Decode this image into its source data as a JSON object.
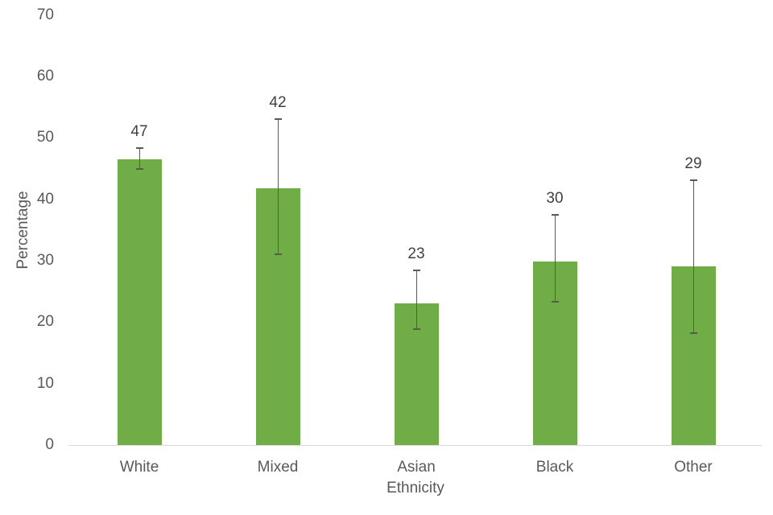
{
  "chart_data": {
    "type": "bar",
    "title": "",
    "xlabel": "Ethnicity",
    "ylabel": "Percentage",
    "categories": [
      "White",
      "Mixed",
      "Asian",
      "Black",
      "Other"
    ],
    "values": [
      47,
      42,
      23,
      30,
      29
    ],
    "bar_tops": [
      46.5,
      41.8,
      23.1,
      29.9,
      29.1
    ],
    "error_low": [
      44.9,
      31.1,
      18.8,
      23.3,
      18.2
    ],
    "error_high": [
      48.3,
      53.0,
      28.4,
      37.4,
      43.1
    ],
    "ylim": [
      0,
      70
    ],
    "ytick_step": 10,
    "ytick_labels": [
      "0",
      "10",
      "20",
      "30",
      "40",
      "50",
      "60",
      "70"
    ],
    "grid": false,
    "legend": false,
    "data_labels_shown": true,
    "colors": {
      "bar": "#70AD47",
      "error_bar": "#595959",
      "axis_line": "#D9D9D9",
      "tick_label": "#595959",
      "data_label": "#404040",
      "background": "#FFFFFF"
    }
  }
}
